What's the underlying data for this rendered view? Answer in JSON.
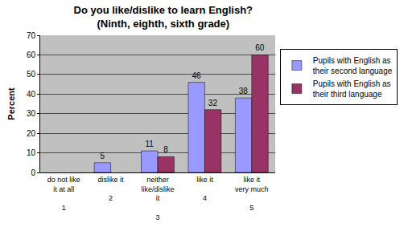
{
  "chart_data": {
    "type": "bar",
    "title": "Do you like/dislike to learn English?",
    "subtitle": "(Ninth, eighth, sixth grade)",
    "y_label": "Percent",
    "categories": [
      "do not like it at all",
      "dislike it",
      "neither like/dislike it",
      "like it",
      "like it very much"
    ],
    "category_groups": [
      "1",
      "2",
      "3",
      "4",
      "5"
    ],
    "series": [
      {
        "name": "Pupils with English as their second language",
        "color": "#9999ff",
        "values": [
          null,
          5,
          11,
          46,
          38
        ]
      },
      {
        "name": "Pupils with English as their third language",
        "color": "#993366",
        "values": [
          null,
          null,
          8,
          32,
          60
        ]
      }
    ],
    "ylim": [
      0,
      70
    ],
    "yticks": [
      0,
      10,
      20,
      30,
      40,
      50,
      60,
      70
    ],
    "grid": true,
    "legend": "right",
    "data_labels": true
  }
}
